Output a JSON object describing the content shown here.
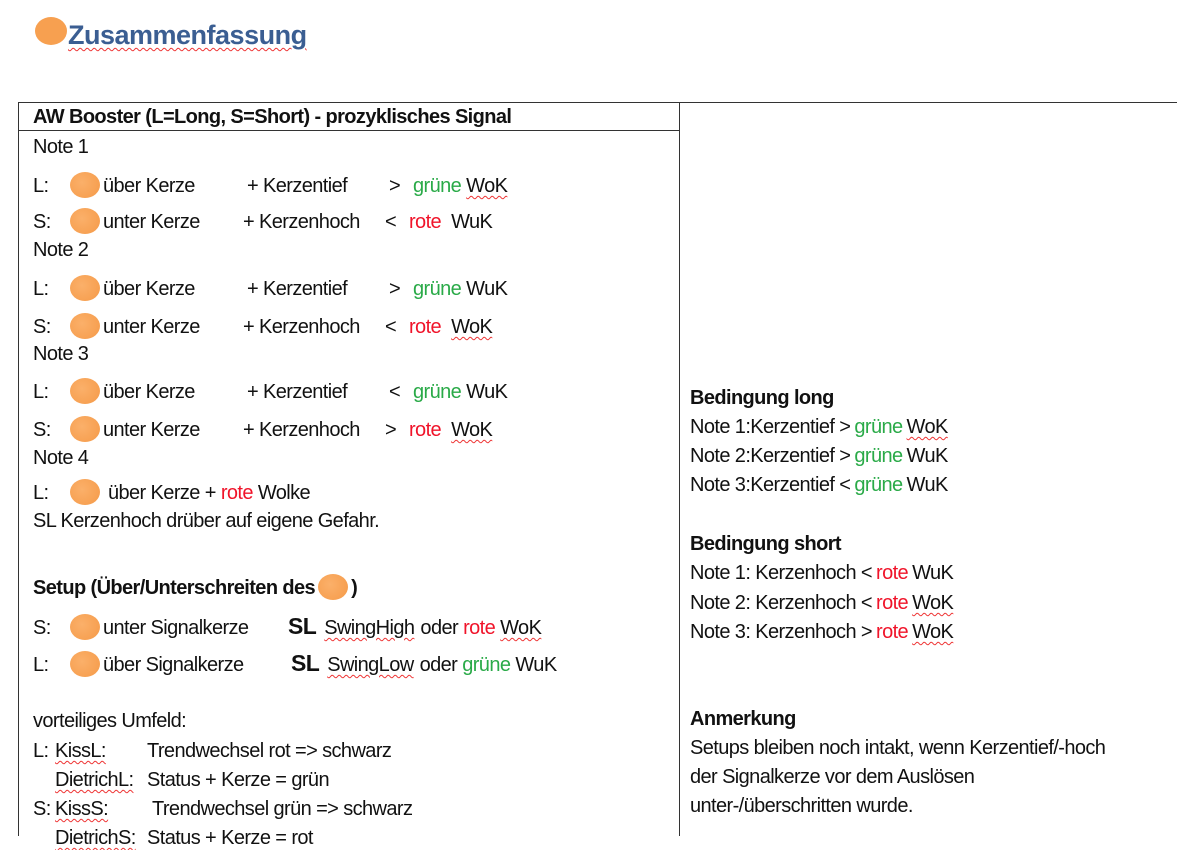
{
  "title": "Zusammenfassung",
  "colors": {
    "title": "#3b5e92",
    "green": "#2aaa48",
    "red": "#f0142a",
    "cloud_icon": "#f7a050"
  },
  "left": {
    "header": "AW Booster (L=Long, S=Short) - prozyklisches Signal",
    "notes": [
      "Note 1",
      "Note 2",
      "Note 3",
      "Note 4"
    ],
    "signals": [
      {
        "side": "L:",
        "desc": "über Kerze",
        "cond": "+ Kerzentief",
        "cmp": ">",
        "cword": "grüne",
        "color": "green",
        "cloud": "WoK"
      },
      {
        "side": "S:",
        "desc": "unter Kerze",
        "cond": "+ Kerzenhoch",
        "cmp": "<",
        "cword": "rote",
        "color": "red",
        "cloud": "WuK"
      },
      {
        "side": "L:",
        "desc": "über Kerze",
        "cond": "+ Kerzentief",
        "cmp": ">",
        "cword": "grüne",
        "color": "green",
        "cloud": "WuK"
      },
      {
        "side": "S:",
        "desc": "unter Kerze",
        "cond": "+ Kerzenhoch",
        "cmp": "<",
        "cword": "rote",
        "color": "red",
        "cloud": "WoK"
      },
      {
        "side": "L:",
        "desc": "über Kerze",
        "cond": "+ Kerzentief",
        "cmp": "<",
        "cword": "grüne",
        "color": "green",
        "cloud": "WuK"
      },
      {
        "side": "S:",
        "desc": "unter Kerze",
        "cond": "+ Kerzenhoch",
        "cmp": ">",
        "cword": "rote",
        "color": "red",
        "cloud": "WoK"
      }
    ],
    "note4": {
      "side": "L:",
      "desc": "über Kerze +",
      "cword": "rote",
      "rest": "Wolke",
      "sl": "SL Kerzenhoch drüber auf eigene Gefahr."
    },
    "setup": {
      "heading": "Setup (Über/Unterschreiten des",
      "close": ")",
      "rows": [
        {
          "side": "S:",
          "desc": "unter Signalkerze",
          "sl": "SL",
          "swing": "SwingHigh",
          "oder": "oder",
          "cword": "rote",
          "color": "red",
          "cloud": "WoK"
        },
        {
          "side": "L:",
          "desc": "über Signalkerze",
          "sl": "SL",
          "swing": "SwingLow",
          "oder": "oder",
          "cword": "grüne",
          "color": "green",
          "cloud": "WuK"
        }
      ]
    },
    "umfeld": {
      "heading": "vorteiliges Umfeld:",
      "rows": [
        {
          "prefix": "L:",
          "name": "KissL:",
          "text": "Trendwechsel rot => schwarz"
        },
        {
          "prefix": "",
          "name": "DietrichL:",
          "text": "Status + Kerze = grün"
        },
        {
          "prefix": "S:",
          "name": "KissS:",
          "text": "Trendwechsel grün => schwarz"
        },
        {
          "prefix": "",
          "name": "DietrichS:",
          "text": "Status + Kerze = rot"
        }
      ]
    }
  },
  "right": {
    "long": {
      "heading": "Bedingung long",
      "rows": [
        {
          "pre": "Note 1:Kerzentief >",
          "cword": "grüne",
          "color": "green",
          "cloud": "WoK"
        },
        {
          "pre": "Note 2:Kerzentief >",
          "cword": "grüne",
          "color": "green",
          "cloud": "WuK"
        },
        {
          "pre": "Note 3:Kerzentief <",
          "cword": "grüne",
          "color": "green",
          "cloud": "WuK"
        }
      ]
    },
    "short": {
      "heading": "Bedingung short",
      "rows": [
        {
          "pre": "Note 1: Kerzenhoch <",
          "cword": "rote",
          "color": "red",
          "cloud": "WuK"
        },
        {
          "pre": "Note 2: Kerzenhoch <",
          "cword": "rote",
          "color": "red",
          "cloud": "WoK"
        },
        {
          "pre": "Note 3: Kerzenhoch >",
          "cword": "rote",
          "color": "red",
          "cloud": "WoK"
        }
      ]
    },
    "remark": {
      "heading": "Anmerkung",
      "lines": [
        "Setups bleiben noch intakt, wenn Kerzentief/-hoch",
        "der Signalkerze vor dem Auslösen",
        "unter-/überschritten wurde."
      ]
    }
  }
}
